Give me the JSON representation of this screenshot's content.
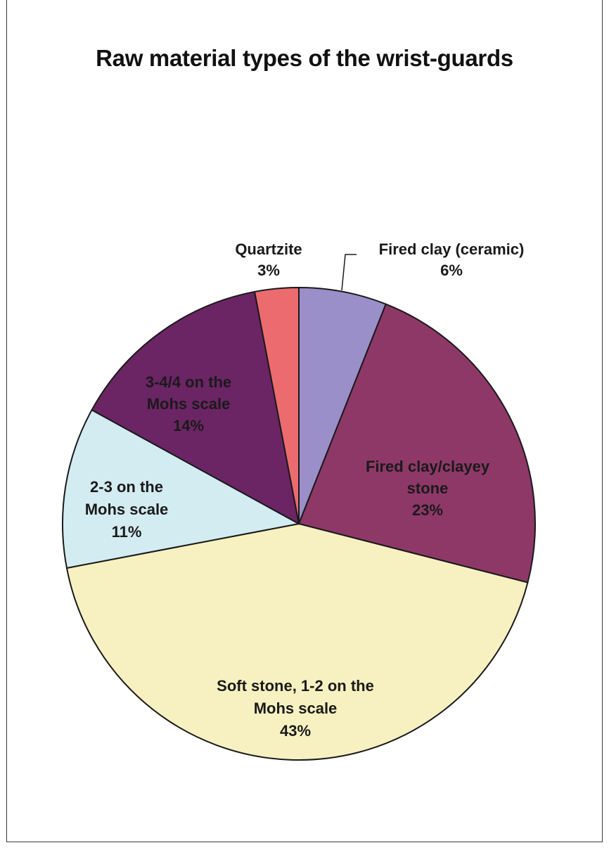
{
  "chart_data": {
    "type": "pie",
    "title": "Raw material types of the wrist-guards",
    "slices": [
      {
        "label_lines": [
          "Fired clay (ceramic)",
          "6%"
        ],
        "value": 6,
        "color": "#9b8fc9"
      },
      {
        "label_lines": [
          "Fired clay/clayey",
          "stone",
          "23%"
        ],
        "value": 23,
        "color": "#8e3868"
      },
      {
        "label_lines": [
          "Soft stone, 1-2 on the",
          "Mohs scale",
          "43%"
        ],
        "value": 43,
        "color": "#f7f1c1"
      },
      {
        "label_lines": [
          "2-3 on the",
          "Mohs scale",
          "11%"
        ],
        "value": 11,
        "color": "#d3ecf2"
      },
      {
        "label_lines": [
          "3-4/4 on the",
          "Mohs scale",
          "14%"
        ],
        "value": 14,
        "color": "#6b2565"
      },
      {
        "label_lines": [
          "Quartzite",
          "3%"
        ],
        "value": 3,
        "color": "#ec6b6f"
      }
    ],
    "start_angle_deg": 90,
    "direction": "clockwise",
    "legend": "none",
    "label_color_dark": "#1a1a1a",
    "label_color_on_dark": "#1a1a1a"
  }
}
